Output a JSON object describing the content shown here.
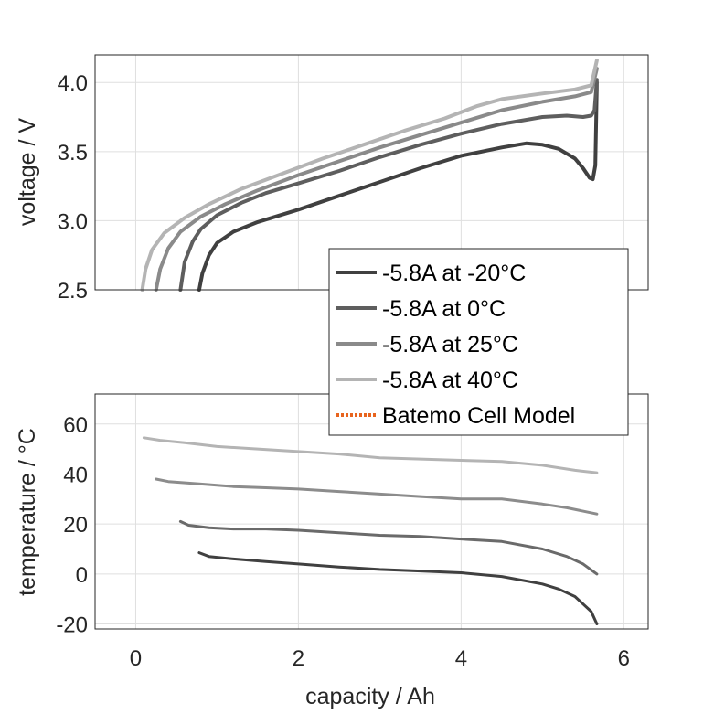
{
  "chart_data": [
    {
      "type": "line",
      "ylabel": "voltage / V",
      "xlim": [
        -0.5,
        6.3
      ],
      "ylim": [
        2.5,
        4.2
      ],
      "yticks": [
        "2.5",
        "3.0",
        "3.5",
        "4.0"
      ],
      "grid": true,
      "series": [
        {
          "name": "-5.8A at -20°C",
          "color": "#404040",
          "x": [
            0.78,
            0.82,
            0.9,
            1.0,
            1.2,
            1.5,
            2.0,
            2.5,
            3.0,
            3.5,
            4.0,
            4.5,
            4.8,
            5.0,
            5.2,
            5.4,
            5.5,
            5.58,
            5.62,
            5.65,
            5.67
          ],
          "y": [
            2.5,
            2.62,
            2.75,
            2.84,
            2.92,
            2.99,
            3.08,
            3.18,
            3.28,
            3.38,
            3.47,
            3.53,
            3.56,
            3.55,
            3.52,
            3.45,
            3.38,
            3.31,
            3.3,
            3.4,
            4.0
          ]
        },
        {
          "name": "-5.8A at 0°C",
          "color": "#5e5e5e",
          "x": [
            0.55,
            0.6,
            0.7,
            0.8,
            1.0,
            1.3,
            1.6,
            2.0,
            2.5,
            3.0,
            3.5,
            4.0,
            4.5,
            5.0,
            5.3,
            5.5,
            5.6,
            5.64,
            5.67
          ],
          "y": [
            2.5,
            2.7,
            2.85,
            2.94,
            3.04,
            3.13,
            3.2,
            3.27,
            3.36,
            3.46,
            3.55,
            3.63,
            3.7,
            3.75,
            3.76,
            3.75,
            3.76,
            3.8,
            4.02
          ]
        },
        {
          "name": "-5.8A at 25°C",
          "color": "#8a8a8a",
          "x": [
            0.25,
            0.3,
            0.4,
            0.55,
            0.8,
            1.1,
            1.5,
            2.0,
            2.5,
            3.0,
            3.5,
            4.0,
            4.5,
            5.0,
            5.4,
            5.6,
            5.67
          ],
          "y": [
            2.5,
            2.65,
            2.8,
            2.92,
            3.03,
            3.12,
            3.22,
            3.33,
            3.43,
            3.53,
            3.62,
            3.71,
            3.8,
            3.86,
            3.9,
            3.93,
            4.1
          ]
        },
        {
          "name": "-5.8A at 40°C",
          "color": "#b4b4b4",
          "x": [
            0.08,
            0.12,
            0.2,
            0.35,
            0.6,
            0.9,
            1.3,
            1.8,
            2.3,
            2.8,
            3.3,
            3.8,
            4.2,
            4.5,
            5.0,
            5.4,
            5.6,
            5.67
          ],
          "y": [
            2.5,
            2.65,
            2.79,
            2.91,
            3.02,
            3.12,
            3.23,
            3.34,
            3.45,
            3.55,
            3.65,
            3.74,
            3.83,
            3.88,
            3.92,
            3.95,
            3.98,
            4.16
          ]
        }
      ]
    },
    {
      "type": "line",
      "xlabel": "capacity / Ah",
      "ylabel": "temperature / °C",
      "xlim": [
        -0.5,
        6.3
      ],
      "ylim": [
        -22,
        72
      ],
      "xticks": [
        "0",
        "2",
        "4",
        "6"
      ],
      "yticks": [
        "-20",
        "0",
        "20",
        "40",
        "60"
      ],
      "grid": true,
      "series": [
        {
          "name": "-5.8A at -20°C",
          "color": "#404040",
          "x": [
            0.78,
            0.9,
            1.2,
            1.6,
            2.0,
            2.5,
            3.0,
            3.5,
            4.0,
            4.5,
            5.0,
            5.2,
            5.4,
            5.5,
            5.6,
            5.67
          ],
          "y": [
            8.5,
            7,
            6,
            5,
            4,
            2.8,
            1.8,
            1.2,
            0.5,
            -1,
            -4,
            -6,
            -9,
            -12,
            -15,
            -20
          ]
        },
        {
          "name": "-5.8A at 0°C",
          "color": "#6a6a6a",
          "x": [
            0.55,
            0.65,
            0.9,
            1.2,
            1.6,
            2.0,
            2.5,
            3.0,
            3.5,
            4.0,
            4.5,
            5.0,
            5.3,
            5.5,
            5.67
          ],
          "y": [
            21,
            19.5,
            18.5,
            18,
            18,
            17.5,
            16.5,
            15.5,
            15,
            14,
            13,
            10,
            7,
            4,
            0
          ]
        },
        {
          "name": "-5.8A at 25°C",
          "color": "#8c8c8c",
          "x": [
            0.25,
            0.4,
            0.8,
            1.2,
            1.6,
            2.0,
            2.5,
            3.0,
            3.5,
            4.0,
            4.5,
            5.0,
            5.3,
            5.67
          ],
          "y": [
            38,
            37,
            36,
            35,
            34.5,
            34,
            33,
            32,
            31,
            30,
            30,
            28,
            26.5,
            24
          ]
        },
        {
          "name": "-5.8A at 40°C",
          "color": "#b4b4b4",
          "x": [
            0.1,
            0.3,
            0.6,
            1.0,
            1.5,
            2.0,
            2.5,
            3.0,
            3.5,
            4.0,
            4.5,
            5.0,
            5.4,
            5.67
          ],
          "y": [
            54.5,
            53.5,
            52.5,
            51,
            50,
            49,
            48,
            46.5,
            46,
            45.5,
            45,
            43.5,
            41.5,
            40.5
          ]
        }
      ]
    }
  ],
  "legend": {
    "placement": "bottom-right of upper plot",
    "entries": [
      {
        "label": "-5.8A at -20°C",
        "color": "#404040",
        "style": "solid"
      },
      {
        "label": "-5.8A at 0°C",
        "color": "#5e5e5e",
        "style": "solid"
      },
      {
        "label": "-5.8A at 25°C",
        "color": "#8a8a8a",
        "style": "solid"
      },
      {
        "label": "-5.8A at 40°C",
        "color": "#b4b4b4",
        "style": "solid"
      },
      {
        "label": "Batemo Cell Model",
        "color": "#e8641e",
        "style": "dotted"
      }
    ]
  }
}
